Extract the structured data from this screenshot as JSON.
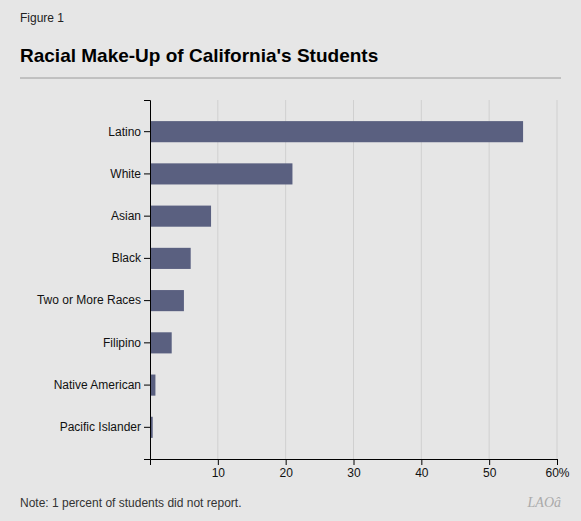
{
  "chart_data": {
    "type": "bar",
    "orientation": "horizontal",
    "title": "Racial Make-Up of California's Students",
    "annotations": [
      "Figure 1",
      "Note:  1 percent of students did not report.",
      "LAOâ"
    ],
    "categories": [
      "Latino",
      "White",
      "Asian",
      "Black",
      "Two or More Races",
      "Filipino",
      "Native American",
      "Pacific Islander"
    ],
    "values": [
      55,
      21,
      9,
      6,
      5,
      3.2,
      0.8,
      0.4
    ],
    "color": "#5a6080",
    "xlim": [
      0,
      60
    ],
    "xticks": [
      10,
      20,
      30,
      40,
      50,
      {
        "value": 60,
        "label": "60%"
      }
    ],
    "grid": true
  }
}
